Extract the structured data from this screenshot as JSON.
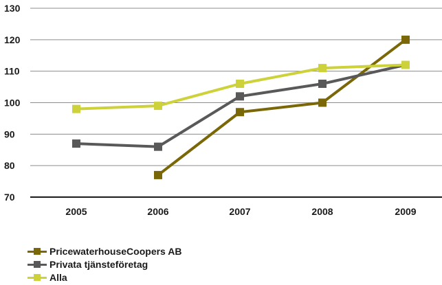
{
  "chart_data": {
    "type": "line",
    "x": [
      2005,
      2006,
      2007,
      2008,
      2009
    ],
    "categories": [
      "2005",
      "2006",
      "2007",
      "2008",
      "2009"
    ],
    "ylim": [
      70,
      130
    ],
    "yticks": [
      "70",
      "80",
      "90",
      "100",
      "110",
      "120",
      "130"
    ],
    "grid": true,
    "legend_position": "bottom-left",
    "series": [
      {
        "name": "PricewaterhouseCoopers AB",
        "color": "#7a6808",
        "values": [
          null,
          77,
          97,
          100,
          120
        ]
      },
      {
        "name": "Privata tjänsteföretag",
        "color": "#595959",
        "values": [
          87,
          86,
          102,
          106,
          112
        ]
      },
      {
        "name": "Alla",
        "color": "#cdd13a",
        "values": [
          98,
          99,
          106,
          111,
          112
        ]
      }
    ]
  }
}
